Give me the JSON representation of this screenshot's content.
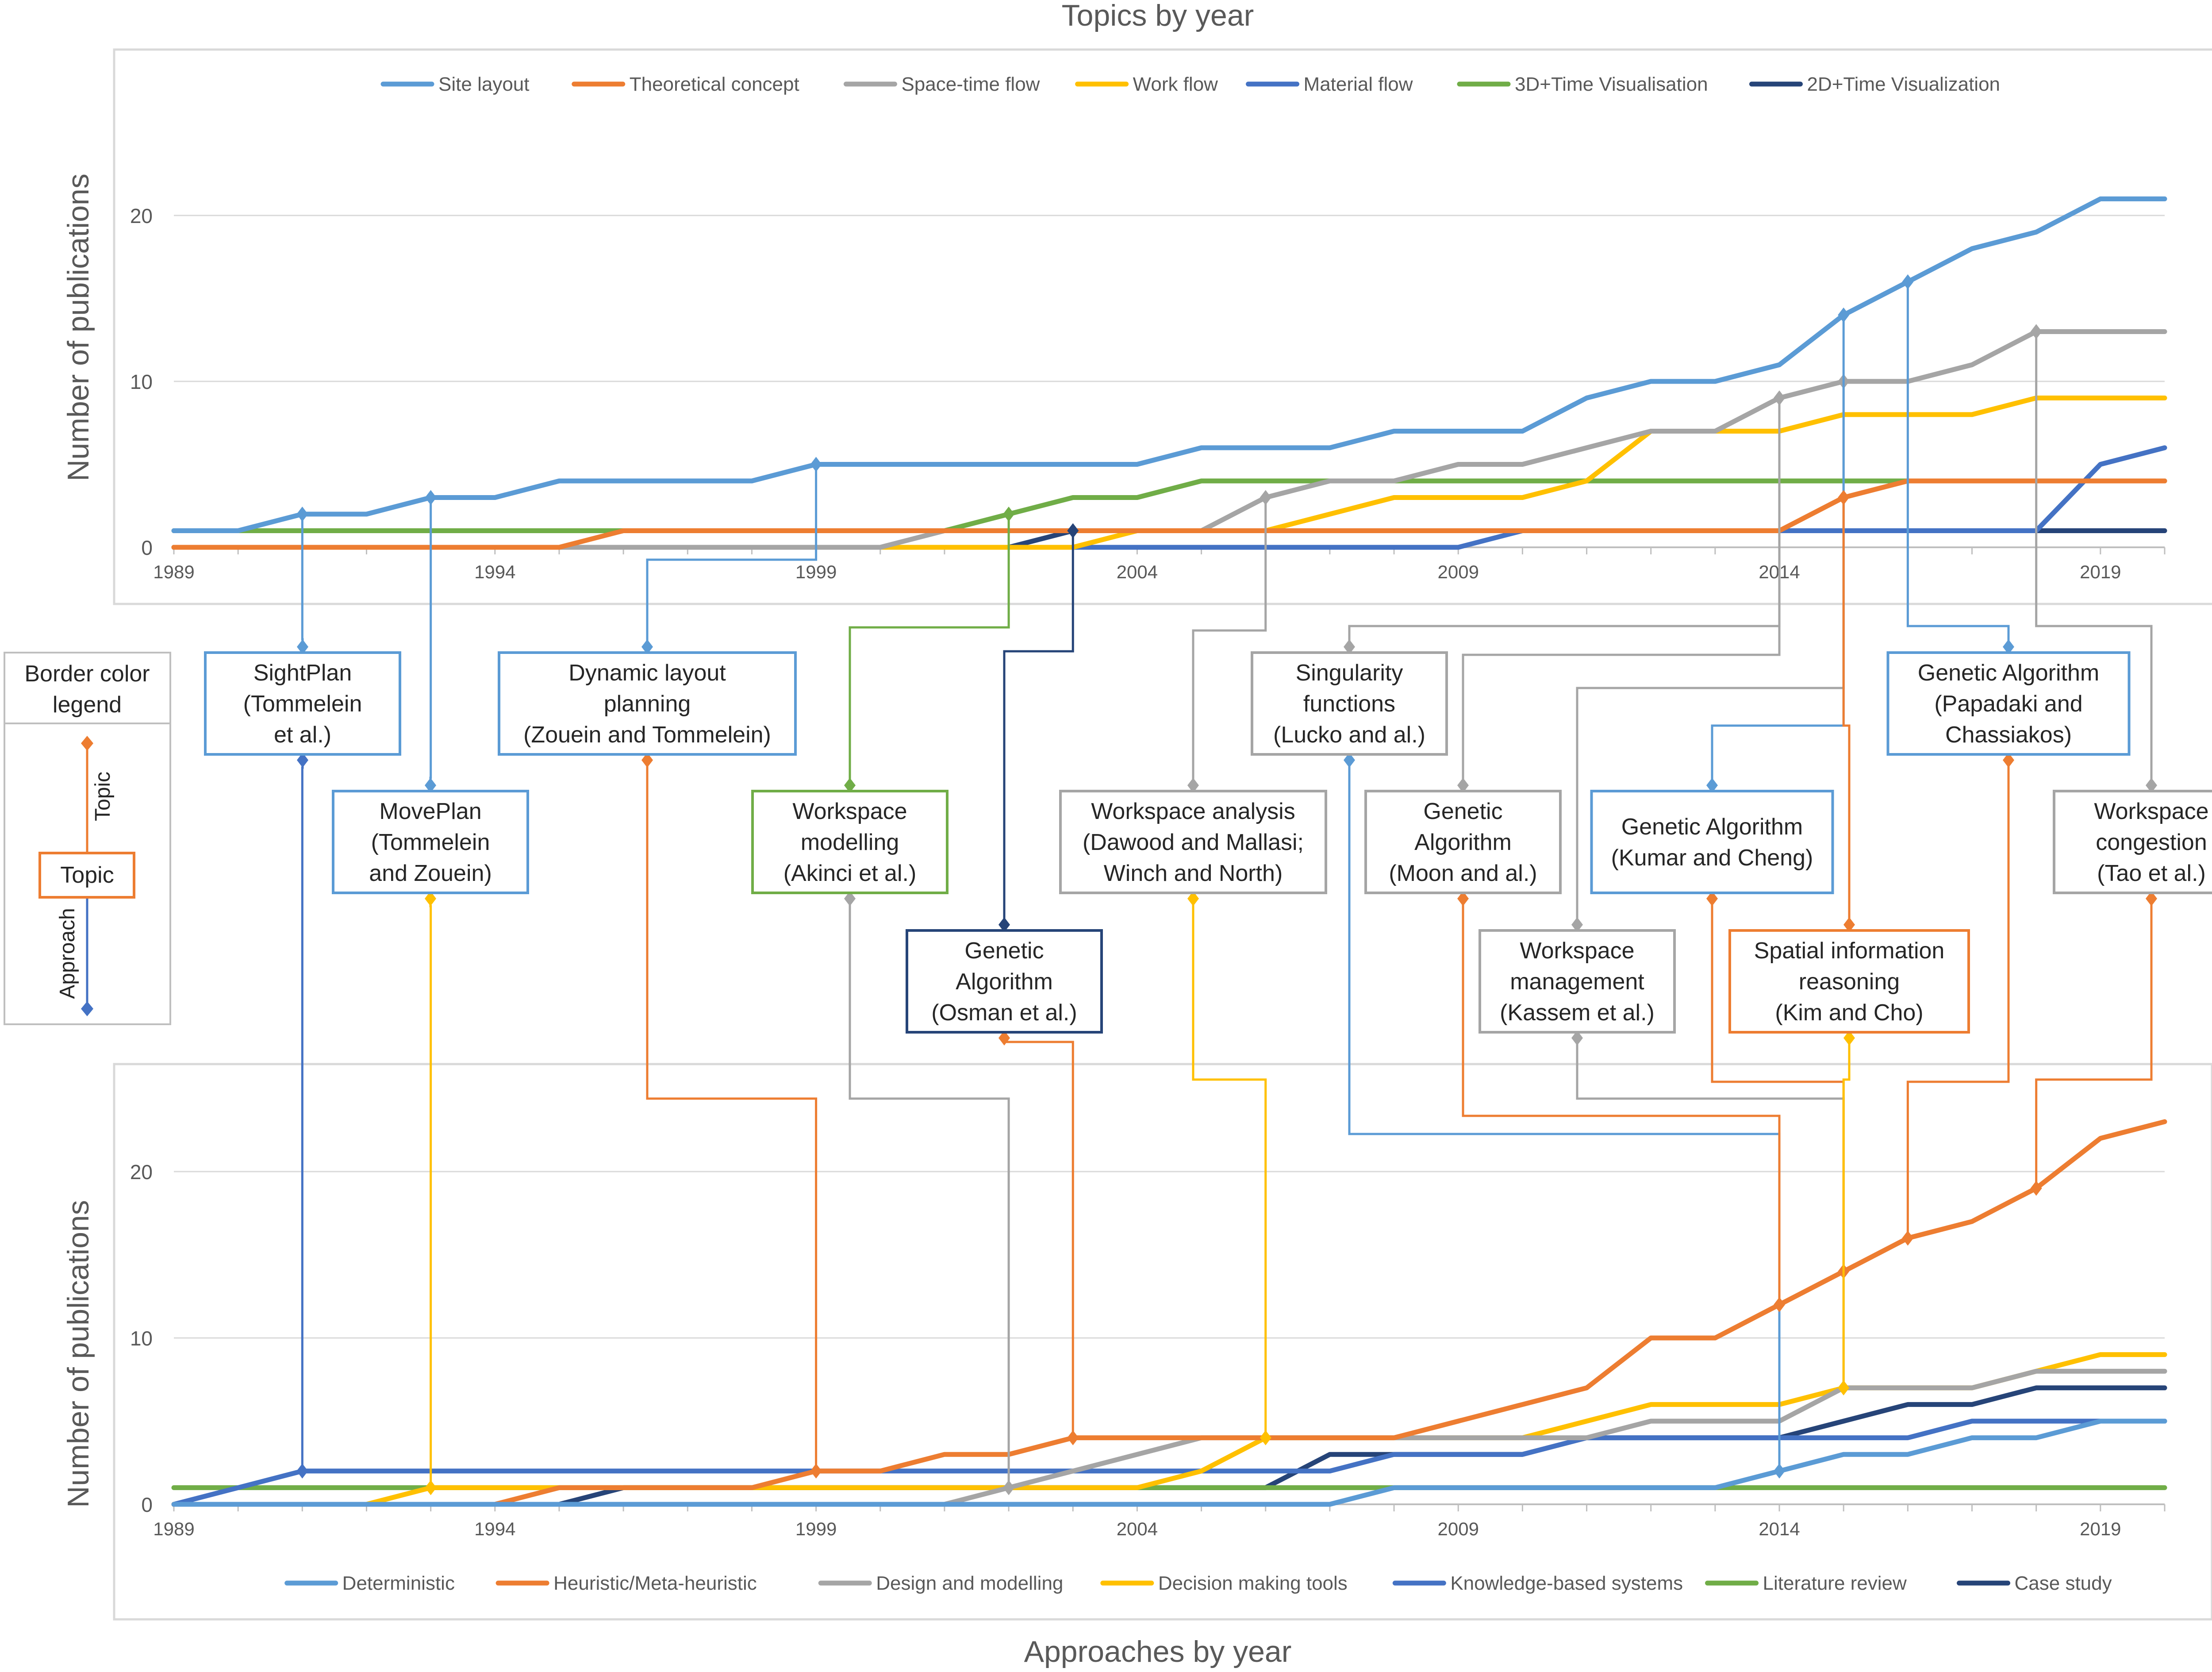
{
  "colors": {
    "site": "#5B9BD5",
    "theory": "#ED7D31",
    "space": "#A5A5A5",
    "work": "#FFC000",
    "material": "#4472C4",
    "vis3d": "#70AD47",
    "vis2d": "#264478",
    "grid": "#D9D9D9",
    "axis": "#BFBFBF",
    "text": "#595959",
    "dark": "#262626"
  },
  "titles": {
    "top_chart": "Topics by year",
    "bottom_chart": "Approaches by year",
    "ylabel": "Number of publications"
  },
  "legend_box": {
    "title_line1": "Border color",
    "title_line2": "legend",
    "center_label": "Topic",
    "up_label": "Topic",
    "down_label": "Approach"
  },
  "chart_data": [
    {
      "type": "line",
      "title": "Topics by year",
      "xlabel": "",
      "ylabel": "Number of publications",
      "xlim": [
        1989,
        2020
      ],
      "ylim": [
        0,
        25
      ],
      "xticks": [
        1989,
        1994,
        1999,
        2004,
        2009,
        2014,
        2019
      ],
      "yticks": [
        0,
        10,
        20
      ],
      "legend": "top",
      "x": [
        1989,
        1990,
        1991,
        1992,
        1993,
        1994,
        1995,
        1996,
        1997,
        1998,
        1999,
        2000,
        2001,
        2002,
        2003,
        2004,
        2005,
        2006,
        2007,
        2008,
        2009,
        2010,
        2011,
        2012,
        2013,
        2014,
        2015,
        2016,
        2017,
        2018,
        2019,
        2020
      ],
      "series": [
        {
          "name": "Site layout",
          "color_key": "site",
          "values": [
            1,
            1,
            2,
            2,
            3,
            3,
            4,
            4,
            4,
            4,
            5,
            5,
            5,
            5,
            5,
            5,
            6,
            6,
            6,
            7,
            7,
            7,
            9,
            10,
            10,
            11,
            14,
            16,
            18,
            19,
            21,
            21
          ]
        },
        {
          "name": "Theoretical concept",
          "color_key": "theory",
          "values": [
            0,
            0,
            0,
            0,
            0,
            0,
            0,
            1,
            1,
            1,
            1,
            1,
            1,
            1,
            1,
            1,
            1,
            1,
            1,
            1,
            1,
            1,
            1,
            1,
            1,
            1,
            3,
            4,
            4,
            4,
            4,
            4
          ]
        },
        {
          "name": "Space-time flow",
          "color_key": "space",
          "values": [
            0,
            0,
            0,
            0,
            0,
            0,
            0,
            0,
            0,
            0,
            0,
            0,
            1,
            1,
            1,
            1,
            1,
            3,
            4,
            4,
            5,
            5,
            6,
            7,
            7,
            9,
            10,
            10,
            11,
            13,
            13,
            13
          ]
        },
        {
          "name": "Work flow",
          "color_key": "work",
          "values": [
            0,
            0,
            0,
            0,
            0,
            0,
            0,
            0,
            0,
            0,
            0,
            0,
            0,
            0,
            0,
            1,
            1,
            1,
            2,
            3,
            3,
            3,
            4,
            7,
            7,
            7,
            8,
            8,
            8,
            9,
            9,
            9
          ]
        },
        {
          "name": "Material flow",
          "color_key": "material",
          "values": [
            0,
            0,
            0,
            0,
            0,
            0,
            0,
            0,
            0,
            0,
            0,
            0,
            0,
            0,
            0,
            0,
            0,
            0,
            0,
            0,
            0,
            1,
            1,
            1,
            1,
            1,
            1,
            1,
            1,
            1,
            5,
            6
          ]
        },
        {
          "name": "3D+Time Visualisation",
          "color_key": "vis3d",
          "values": [
            1,
            1,
            1,
            1,
            1,
            1,
            1,
            1,
            1,
            1,
            1,
            1,
            1,
            2,
            3,
            3,
            4,
            4,
            4,
            4,
            4,
            4,
            4,
            4,
            4,
            4,
            4,
            4,
            4,
            4,
            4,
            4
          ]
        },
        {
          "name": "2D+Time Visualization",
          "color_key": "vis2d",
          "values": [
            0,
            0,
            0,
            0,
            0,
            0,
            0,
            0,
            0,
            0,
            0,
            0,
            0,
            0,
            1,
            1,
            1,
            1,
            1,
            1,
            1,
            1,
            1,
            1,
            1,
            1,
            1,
            1,
            1,
            1,
            1,
            1
          ]
        }
      ]
    },
    {
      "type": "line",
      "title": "Approaches by year",
      "xlabel": "",
      "ylabel": "Number of publications",
      "xlim": [
        1989,
        2020
      ],
      "ylim": [
        0,
        26
      ],
      "xticks": [
        1989,
        1994,
        1999,
        2004,
        2009,
        2014,
        2019
      ],
      "yticks": [
        0,
        10,
        20
      ],
      "legend": "bottom",
      "x": [
        1989,
        1990,
        1991,
        1992,
        1993,
        1994,
        1995,
        1996,
        1997,
        1998,
        1999,
        2000,
        2001,
        2002,
        2003,
        2004,
        2005,
        2006,
        2007,
        2008,
        2009,
        2010,
        2011,
        2012,
        2013,
        2014,
        2015,
        2016,
        2017,
        2018,
        2019,
        2020
      ],
      "series": [
        {
          "name": "Deterministic",
          "color_key": "site",
          "values": [
            0,
            0,
            0,
            0,
            0,
            0,
            0,
            0,
            0,
            0,
            0,
            0,
            0,
            0,
            0,
            0,
            0,
            0,
            0,
            1,
            1,
            1,
            1,
            1,
            1,
            2,
            3,
            3,
            4,
            4,
            5,
            5
          ]
        },
        {
          "name": "Heuristic/Meta-heuristic",
          "color_key": "theory",
          "values": [
            0,
            0,
            0,
            0,
            0,
            0,
            1,
            1,
            1,
            1,
            2,
            2,
            3,
            3,
            4,
            4,
            4,
            4,
            4,
            4,
            5,
            6,
            7,
            10,
            10,
            12,
            14,
            16,
            17,
            19,
            22,
            23
          ]
        },
        {
          "name": "Design and modelling",
          "color_key": "space",
          "values": [
            0,
            0,
            0,
            0,
            0,
            0,
            0,
            0,
            0,
            0,
            0,
            0,
            0,
            1,
            2,
            3,
            4,
            4,
            4,
            4,
            4,
            4,
            4,
            5,
            5,
            5,
            7,
            7,
            7,
            8,
            8,
            8
          ]
        },
        {
          "name": "Decision making tools",
          "color_key": "work",
          "values": [
            0,
            0,
            0,
            0,
            1,
            1,
            1,
            1,
            1,
            1,
            1,
            1,
            1,
            1,
            1,
            1,
            2,
            4,
            4,
            4,
            4,
            4,
            5,
            6,
            6,
            6,
            7,
            7,
            7,
            8,
            9,
            9
          ]
        },
        {
          "name": "Knowledge-based systems",
          "color_key": "material",
          "values": [
            0,
            1,
            2,
            2,
            2,
            2,
            2,
            2,
            2,
            2,
            2,
            2,
            2,
            2,
            2,
            2,
            2,
            2,
            2,
            3,
            3,
            3,
            4,
            4,
            4,
            4,
            4,
            4,
            5,
            5,
            5,
            5
          ]
        },
        {
          "name": "Literature review",
          "color_key": "vis3d",
          "values": [
            1,
            1,
            1,
            1,
            1,
            1,
            1,
            1,
            1,
            1,
            1,
            1,
            1,
            1,
            1,
            1,
            1,
            1,
            1,
            1,
            1,
            1,
            1,
            1,
            1,
            1,
            1,
            1,
            1,
            1,
            1,
            1
          ]
        },
        {
          "name": "Case study",
          "color_key": "vis2d",
          "values": [
            0,
            0,
            0,
            0,
            0,
            0,
            0,
            1,
            1,
            1,
            1,
            1,
            1,
            1,
            1,
            1,
            1,
            1,
            3,
            3,
            3,
            3,
            4,
            4,
            4,
            4,
            5,
            6,
            6,
            7,
            7,
            7
          ]
        }
      ]
    }
  ],
  "annotations": [
    {
      "lines": [
        "SightPlan",
        "(Tommelein",
        "et al.)"
      ],
      "border_key": "site",
      "top_x": 1991,
      "top_y": 2,
      "bottom_x": 1991,
      "bottom_y": 2,
      "bottom_color_key": "material"
    },
    {
      "lines": [
        "MovePlan",
        "(Tommelein",
        "and Zouein)"
      ],
      "border_key": "site",
      "top_x": 1993,
      "top_y": 3,
      "bottom_x": 1993,
      "bottom_y": 1,
      "bottom_color_key": "work"
    },
    {
      "lines": [
        "Dynamic layout",
        "planning",
        "(Zouein and Tommelein)"
      ],
      "border_key": "site",
      "top_x": 1999,
      "top_y": 5,
      "bottom_x": 1999,
      "bottom_y": 2,
      "bottom_color_key": "theory"
    },
    {
      "lines": [
        "Workspace",
        "modelling",
        "(Akinci et al.)"
      ],
      "border_key": "vis3d",
      "top_x": 2002,
      "top_y": 2,
      "bottom_x": 2002,
      "bottom_y": 1,
      "bottom_color_key": "space"
    },
    {
      "lines": [
        "Genetic",
        "Algorithm",
        "(Osman et al.)"
      ],
      "border_key": "vis2d",
      "top_x": 2003,
      "top_y": 1,
      "bottom_x": 2003,
      "bottom_y": 4,
      "bottom_color_key": "theory"
    },
    {
      "lines": [
        "Workspace analysis",
        "(Dawood and Mallasi;",
        "Winch and North)"
      ],
      "border_key": "space",
      "top_x": 2006,
      "top_y": 3,
      "bottom_x": 2006,
      "bottom_y": 4,
      "bottom_color_key": "work"
    },
    {
      "lines": [
        "Singularity",
        "functions",
        "(Lucko and al.)"
      ],
      "border_key": "space",
      "top_x": 2014,
      "top_y": 9,
      "bottom_x": 2014,
      "bottom_y": 2,
      "bottom_color_key": "site"
    },
    {
      "lines": [
        "Genetic",
        "Algorithm",
        "(Moon and al.)"
      ],
      "border_key": "space",
      "top_x": 2014,
      "top_y": 9,
      "bottom_x": 2014,
      "bottom_y": 12,
      "bottom_color_key": "theory"
    },
    {
      "lines": [
        "Workspace",
        "management",
        "(Kassem et al.)"
      ],
      "border_key": "space",
      "top_x": 2015,
      "top_y": 10,
      "bottom_x": 2015,
      "bottom_y": 7,
      "bottom_color_key": "space"
    },
    {
      "lines": [
        "Genetic Algorithm",
        "(Kumar and Cheng)"
      ],
      "border_key": "site",
      "top_x": 2015,
      "top_y": 14,
      "bottom_x": 2015,
      "bottom_y": 14,
      "bottom_color_key": "theory"
    },
    {
      "lines": [
        "Spatial information",
        "reasoning",
        "(Kim and Cho)"
      ],
      "border_key": "theory",
      "top_x": 2015,
      "top_y": 3,
      "bottom_x": 2015,
      "bottom_y": 7,
      "bottom_color_key": "work"
    },
    {
      "lines": [
        "Genetic Algorithm",
        "(Papadaki and",
        "Chassiakos)"
      ],
      "border_key": "site",
      "top_x": 2016,
      "top_y": 16,
      "bottom_x": 2016,
      "bottom_y": 16,
      "bottom_color_key": "theory"
    },
    {
      "lines": [
        "Workspace",
        "congestion",
        "(Tao et al.)"
      ],
      "border_key": "space",
      "top_x": 2018,
      "top_y": 13,
      "bottom_x": 2018,
      "bottom_y": 19,
      "bottom_color_key": "theory"
    }
  ]
}
